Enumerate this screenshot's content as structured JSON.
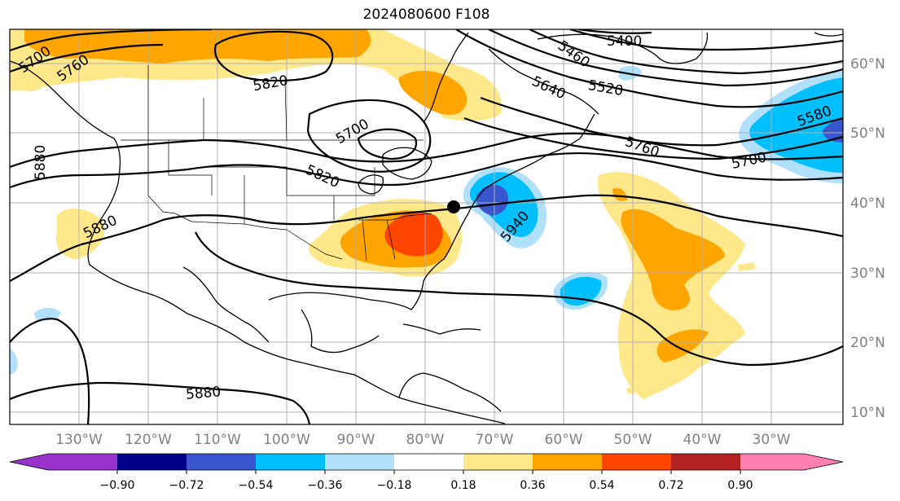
{
  "title": "2024080600 F108",
  "colors": {
    "neg_090": "#9932cc",
    "neg_072": "#00008b",
    "neg_054": "#3a56cf",
    "neg_036": "#00bfff",
    "neg_018": "#b0e0fa",
    "neutral": "#ffffff",
    "pos_018": "#ffe88a",
    "pos_036": "#ffa500",
    "pos_054": "#ff4500",
    "pos_072": "#b22222",
    "pos_090": "#ff80b0"
  },
  "longitude_labels": [
    "130°W",
    "120°W",
    "110°W",
    "100°W",
    "90°W",
    "80°W",
    "70°W",
    "60°W",
    "50°W",
    "40°W",
    "30°W"
  ],
  "latitude_labels": [
    "60°N",
    "50°N",
    "40°N",
    "30°N",
    "20°N",
    "10°N"
  ],
  "colorbar_labels": [
    "−0.90",
    "−0.72",
    "−0.54",
    "−0.36",
    "−0.18",
    "0.18",
    "0.36",
    "0.54",
    "0.72",
    "0.90"
  ],
  "contour_labels": [
    "5400",
    "5460",
    "5520",
    "5580",
    "5640",
    "5700",
    "5700",
    "5700",
    "5760",
    "5760",
    "5820",
    "5820",
    "5880",
    "5880",
    "5880",
    "5940"
  ]
}
